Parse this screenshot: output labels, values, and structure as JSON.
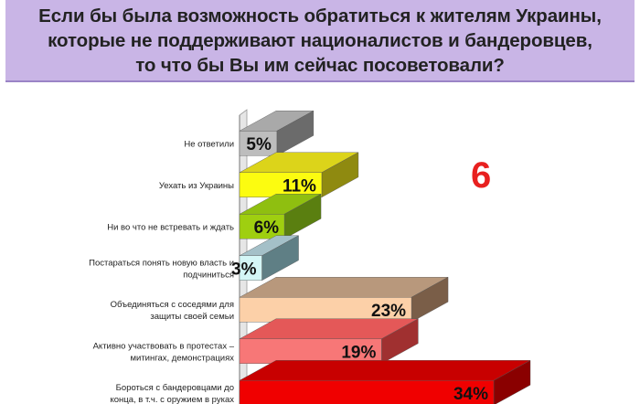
{
  "title": "Если бы была возможность обратиться к жителям Украины,\nкоторые не поддерживают националистов и бандеровцев,\nто что бы  Вы им сейчас посоветовали?",
  "slide_number": "6",
  "chart_data": {
    "type": "bar",
    "orientation": "horizontal",
    "style": "3d",
    "categories": [
      [
        "Не ответили"
      ],
      [
        "Уехать из Украины"
      ],
      [
        "Ни во что не встревать и ждать"
      ],
      [
        "Постараться понять новую власть и",
        "подчиниться"
      ],
      [
        "Объединяться с соседями для",
        "защиты своей семьи"
      ],
      [
        "Активно участвовать в протестах –",
        "митингах, демонстрациях"
      ],
      [
        "Бороться с бандеровцами до",
        "конца, в т.ч. с оружием в руках"
      ]
    ],
    "values": [
      5,
      11,
      6,
      3,
      23,
      19,
      34
    ],
    "value_labels": [
      "5%",
      "11%",
      "6%",
      "3%",
      "23%",
      "19%",
      "34%"
    ],
    "colors": [
      {
        "front": "#bdbdbd",
        "top": "#a9a9a9",
        "side": "#6b6b6b"
      },
      {
        "front": "#fcfc10",
        "top": "#dcd41a",
        "side": "#8f8a10"
      },
      {
        "front": "#9fcf10",
        "top": "#8fbf10",
        "side": "#5a7f10"
      },
      {
        "front": "#d4f6f6",
        "top": "#a4c0c8",
        "side": "#5f7f85"
      },
      {
        "front": "#fcd0a8",
        "top": "#b8987c",
        "side": "#7a5e48"
      },
      {
        "front": "#f77777",
        "top": "#e45858",
        "side": "#a03030"
      },
      {
        "front": "#f00000",
        "top": "#c80000",
        "side": "#8a0000"
      }
    ],
    "xlim": [
      0,
      34
    ],
    "grid": false,
    "legend": "none"
  }
}
